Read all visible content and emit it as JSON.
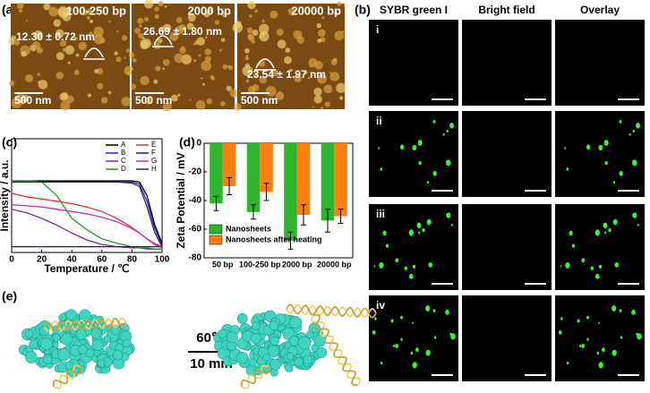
{
  "panel_labels": [
    "(a)",
    "(b)",
    "(c)",
    "(d)",
    "(e)"
  ],
  "afm": {
    "images": [
      {
        "length": "100-250 bp",
        "height": "12.30 ± 0.72 nm",
        "scale": "500 nm"
      },
      {
        "length": "2000 bp",
        "height": "26.69 ± 1.80 nm",
        "scale": "500 nm"
      },
      {
        "length": "20000 bp",
        "height": "23.54 ± 1.97 nm",
        "scale": "500 nm"
      }
    ]
  },
  "microscopy": {
    "columns": [
      "SYBR green I",
      "Bright field",
      "Overlay"
    ],
    "rows": [
      "i",
      "ii",
      "iii",
      "iv"
    ]
  },
  "diagram": {
    "temperature": "60℃",
    "time": "10 min"
  },
  "chart_data": [
    {
      "type": "line",
      "xlabel": "Temperature / ℃",
      "ylabel": "Intensity / a.u.",
      "x": [
        0,
        10,
        20,
        30,
        40,
        50,
        60,
        70,
        80,
        85,
        90,
        95,
        100
      ],
      "xlim": [
        0,
        100
      ],
      "xticks": [
        0,
        20,
        40,
        60,
        80,
        100
      ],
      "ylim": [
        0,
        1
      ],
      "series": [
        {
          "name": "A",
          "color": "#000000",
          "values": [
            0.63,
            0.63,
            0.63,
            0.63,
            0.63,
            0.63,
            0.63,
            0.63,
            0.63,
            0.62,
            0.5,
            0.25,
            0.08
          ]
        },
        {
          "name": "B",
          "color": "#2020e0",
          "values": [
            0.62,
            0.62,
            0.62,
            0.62,
            0.62,
            0.62,
            0.62,
            0.62,
            0.62,
            0.6,
            0.45,
            0.22,
            0.06
          ]
        },
        {
          "name": "C",
          "color": "#7a2ca0",
          "values": [
            0.38,
            0.35,
            0.3,
            0.24,
            0.17,
            0.11,
            0.07,
            0.05,
            0.04,
            0.04,
            0.03,
            0.03,
            0.03
          ]
        },
        {
          "name": "D",
          "color": "#20a020",
          "values": [
            0.63,
            0.63,
            0.62,
            0.5,
            0.3,
            0.2,
            0.12,
            0.08,
            0.05,
            0.04,
            0.04,
            0.03,
            0.03
          ]
        },
        {
          "name": "E",
          "color": "#e03040",
          "values": [
            0.52,
            0.49,
            0.47,
            0.45,
            0.43,
            0.4,
            0.36,
            0.3,
            0.22,
            0.17,
            0.12,
            0.07,
            0.04
          ]
        },
        {
          "name": "F",
          "color": "#1a1a80",
          "values": [
            0.05,
            0.05,
            0.05,
            0.05,
            0.05,
            0.05,
            0.05,
            0.05,
            0.05,
            0.05,
            0.05,
            0.05,
            0.05
          ]
        },
        {
          "name": "G",
          "color": "#c030c0",
          "values": [
            0.42,
            0.41,
            0.4,
            0.38,
            0.36,
            0.34,
            0.31,
            0.27,
            0.21,
            0.17,
            0.12,
            0.08,
            0.05
          ]
        },
        {
          "name": "H",
          "color": "#303030",
          "values": [
            0.62,
            0.62,
            0.62,
            0.62,
            0.62,
            0.62,
            0.62,
            0.62,
            0.61,
            0.58,
            0.4,
            0.18,
            0.05
          ]
        }
      ]
    },
    {
      "type": "bar",
      "ylabel": "Zeta Potential / mV",
      "categories": [
        "50 bp",
        "100-250 bp",
        "2000 bp",
        "20000 bp"
      ],
      "ylim": [
        -80,
        0
      ],
      "yticks": [
        -80,
        -60,
        -40,
        -20,
        0
      ],
      "series": [
        {
          "name": "Nanosheets",
          "color": "#2db52d",
          "values": [
            -42,
            -48,
            -68,
            -54
          ],
          "errors": [
            5,
            5,
            6,
            8
          ]
        },
        {
          "name": "Nanosheets after heating",
          "color": "#ff7f0e",
          "values": [
            -30,
            -34,
            -50,
            -51
          ],
          "errors": [
            6,
            6,
            7,
            5
          ]
        }
      ]
    }
  ]
}
